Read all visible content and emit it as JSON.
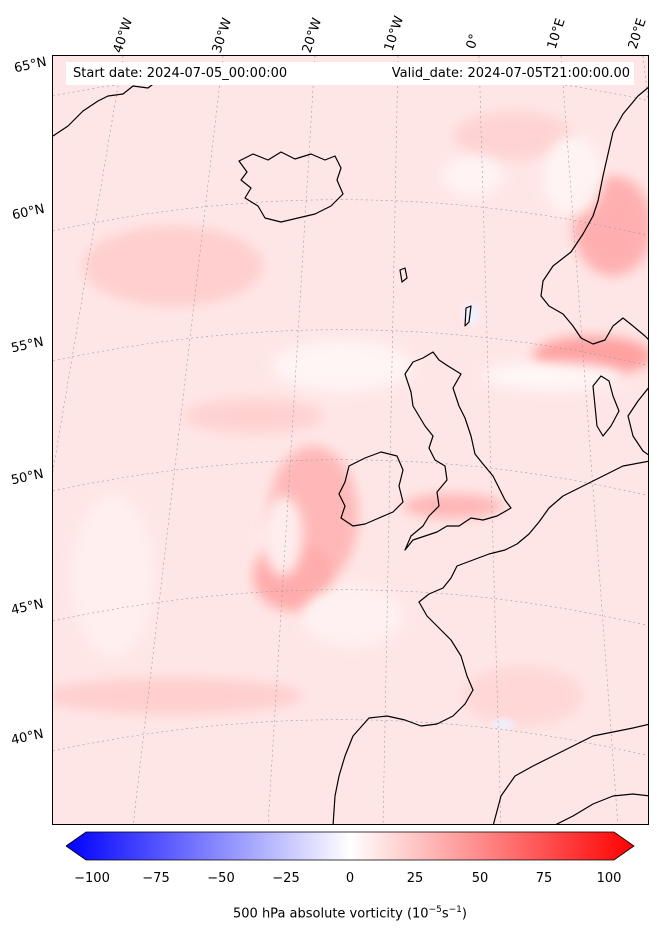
{
  "header": {
    "start_date": "Start date: 2024-07-05_00:00:00",
    "valid_date": "Valid_date: 2024-07-05T21:00:00.00"
  },
  "axes": {
    "longitude_labels": [
      "40°W",
      "30°W",
      "20°W",
      "10°W",
      "0°",
      "10°E",
      "20°E"
    ],
    "latitude_labels": [
      "65°N",
      "60°N",
      "55°N",
      "50°N",
      "45°N",
      "40°N"
    ]
  },
  "colorbar": {
    "label": "500 hPa absolute vorticity (10",
    "label_exp": "−5",
    "label_unit": "s",
    "label_unit_exp": "−1",
    "label_close": ")",
    "ticks": [
      "−100",
      "−75",
      "−50",
      "−25",
      "0",
      "25",
      "50",
      "75",
      "100"
    ],
    "min": -100,
    "max": 100,
    "colormap": "bwr",
    "min_color": "#0000ff",
    "mid_color": "#ffffff",
    "max_color": "#ff0000"
  },
  "map": {
    "field": "500 hPa absolute vorticity",
    "region": "North Atlantic / Western Europe",
    "background_color": "#ffe6e6",
    "coastline_color": "#000000",
    "gridline_style": "dotted gray"
  }
}
